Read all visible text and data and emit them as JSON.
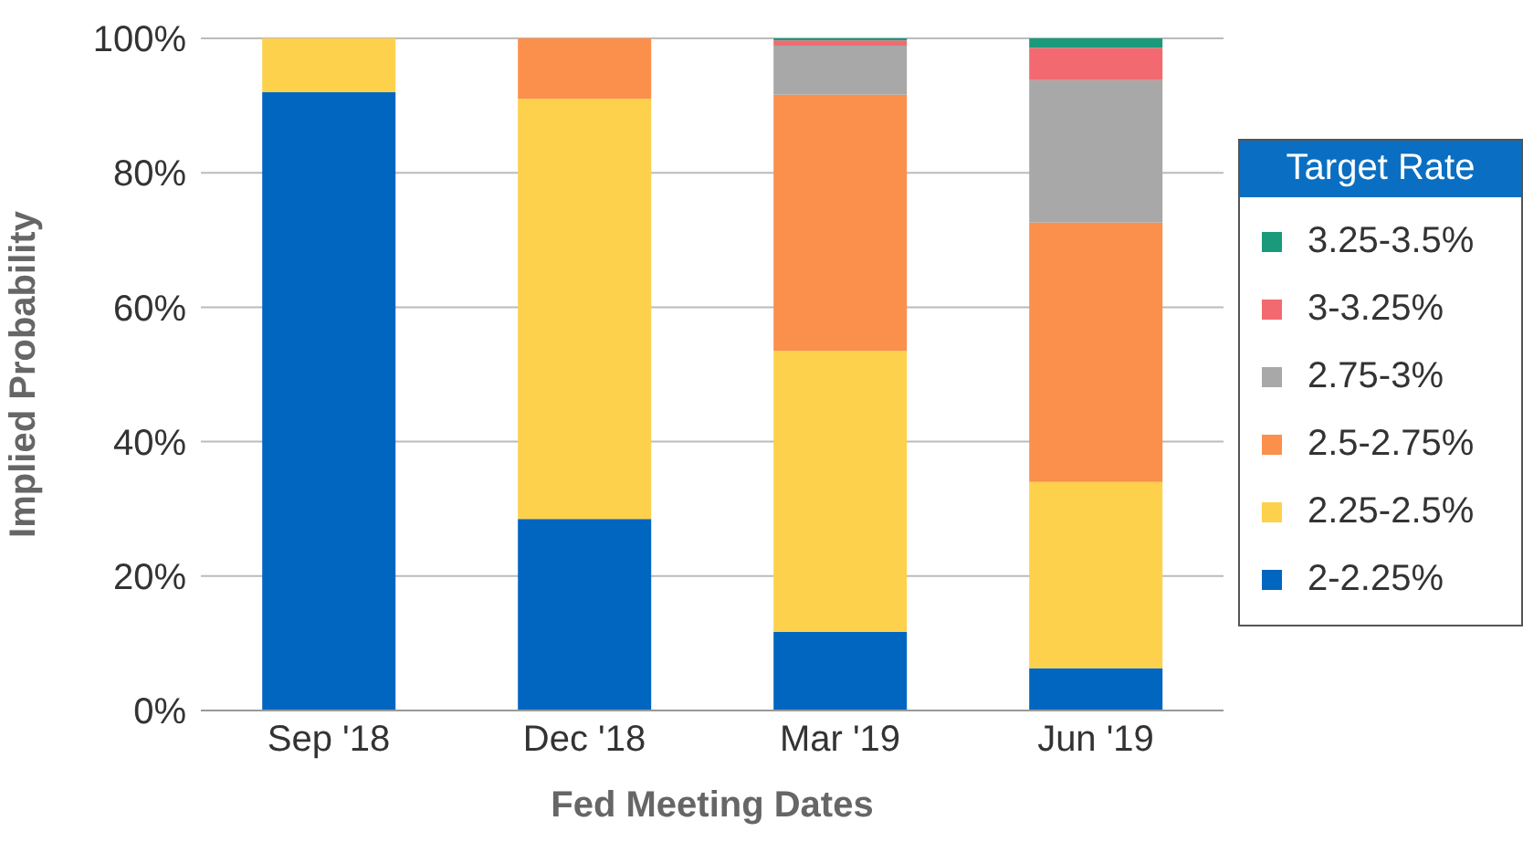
{
  "chart_data": {
    "type": "bar",
    "stacked": true,
    "xlabel": "Fed Meeting Dates",
    "ylabel": "Implied Probability",
    "legend_title": "Target Rate",
    "legend": "right",
    "grid": "y",
    "categories": [
      "Sep '18",
      "Dec '18",
      "Mar '19",
      "Jun '19"
    ],
    "ylim": [
      0,
      100
    ],
    "yticks": [
      {
        "value": 0,
        "label": "0%"
      },
      {
        "value": 20,
        "label": "20%"
      },
      {
        "value": 40,
        "label": "40%"
      },
      {
        "value": 60,
        "label": "60%"
      },
      {
        "value": 80,
        "label": "80%"
      },
      {
        "value": 100,
        "label": "100%"
      }
    ],
    "series": [
      {
        "name": "2-2.25%",
        "color": "#0066c0",
        "values": [
          92,
          28.5,
          11.7,
          6.3
        ]
      },
      {
        "name": "2.25-2.5%",
        "color": "#fdd14c",
        "values": [
          8,
          62.5,
          41.8,
          27.7
        ]
      },
      {
        "name": "2.5-2.75%",
        "color": "#fb8f4c",
        "values": [
          0,
          9,
          38.1,
          38.6
        ]
      },
      {
        "name": "2.75-3%",
        "color": "#a8a8a8",
        "values": [
          0,
          null,
          7.3,
          21.2
        ]
      },
      {
        "name": "3-3.25%",
        "color": "#f26a70",
        "values": [
          0,
          0,
          0.8,
          4.8
        ]
      },
      {
        "name": "3.25-3.5%",
        "color": "#1a9a7a",
        "values": [
          0,
          0,
          0.3,
          1.4
        ]
      }
    ]
  }
}
